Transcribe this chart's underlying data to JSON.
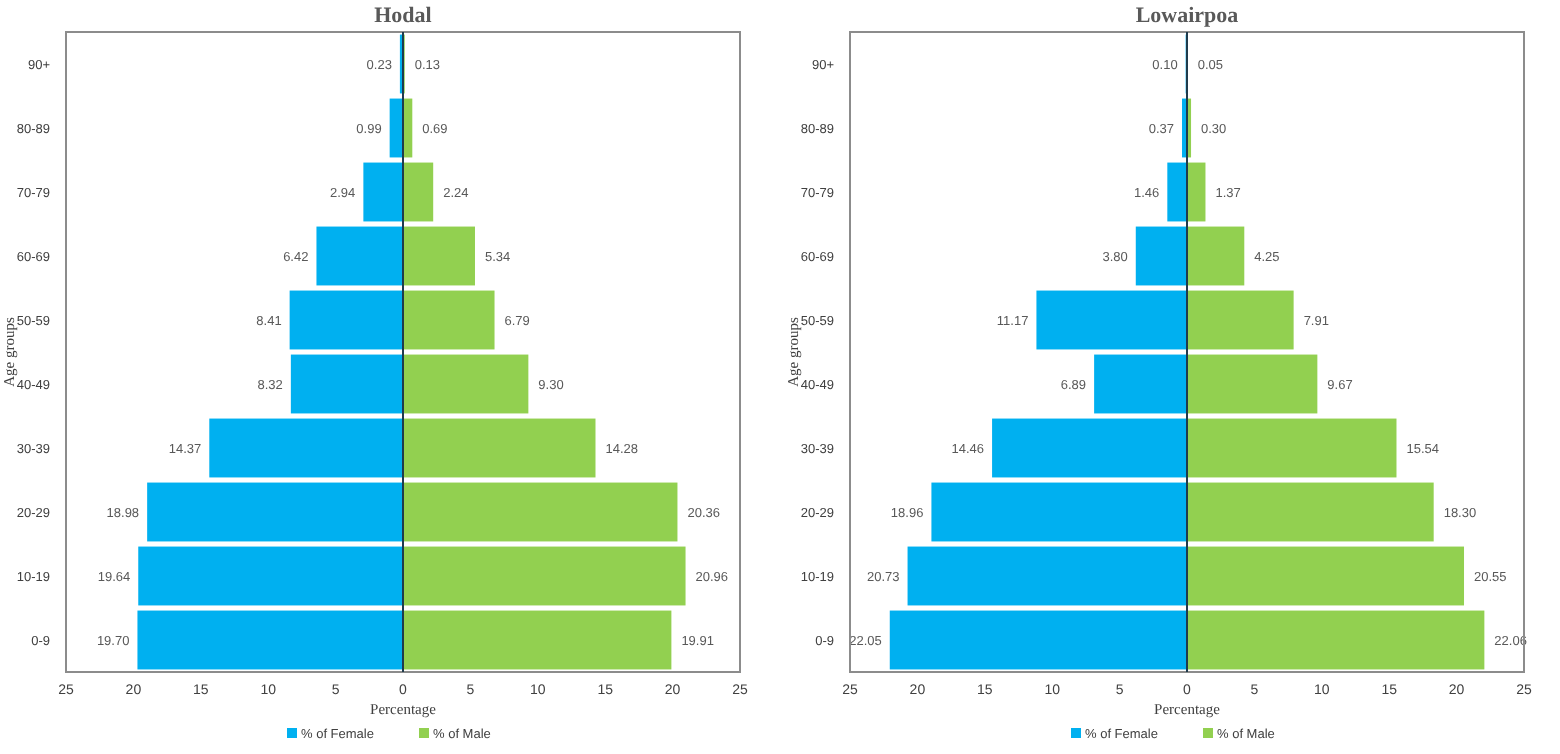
{
  "chart_data": [
    {
      "type": "bar",
      "orientation": "horizontal",
      "title": "Hodal",
      "xlabel": "Percentage",
      "ylabel": "Age groups",
      "categories": [
        "90+",
        "80-89",
        "70-79",
        "60-69",
        "50-59",
        "40-49",
        "30-39",
        "20-29",
        "10-19",
        "0-9"
      ],
      "series": [
        {
          "name": "% of Female",
          "color": "#00b0f0",
          "base": [
            -0.23,
            -0.99,
            -2.94,
            -6.42,
            -8.41,
            -8.32,
            -14.37,
            -18.98,
            -19.64,
            -19.7
          ],
          "values": [
            0.23,
            0.99,
            2.94,
            6.42,
            8.41,
            8.32,
            14.37,
            18.98,
            19.64,
            19.7
          ],
          "value_labels": [
            "0.23",
            "0.99",
            "2.94",
            "6.42",
            "8.41",
            "8.32",
            "14.37",
            "18.98",
            "19.64",
            "19.70"
          ]
        },
        {
          "name": "% of Male",
          "color": "#92d050",
          "values": [
            0.13,
            0.69,
            2.24,
            5.34,
            6.79,
            9.3,
            14.28,
            20.36,
            20.96,
            19.91
          ],
          "value_labels": [
            "0.13",
            "0.69",
            "2.24",
            "5.34",
            "6.79",
            "9.30",
            "14.28",
            "20.36",
            "20.96",
            "19.91"
          ]
        }
      ],
      "xlim": [
        -25,
        25
      ],
      "xticks": [
        {
          "value": -25,
          "label": "25"
        },
        {
          "value": -20,
          "label": "20"
        },
        {
          "value": -15,
          "label": "15"
        },
        {
          "value": -10,
          "label": "10"
        },
        {
          "value": -5,
          "label": "5"
        },
        0,
        5,
        10,
        15,
        20,
        25
      ],
      "legend": "bottom"
    },
    {
      "type": "bar",
      "orientation": "horizontal",
      "title": "Lowairpoa",
      "xlabel": "Percentage",
      "ylabel": "Age groups",
      "categories": [
        "90+",
        "80-89",
        "70-79",
        "60-69",
        "50-59",
        "40-49",
        "30-39",
        "20-29",
        "10-19",
        "0-9"
      ],
      "series": [
        {
          "name": "% of Female",
          "color": "#00b0f0",
          "base": [
            -0.1,
            -0.37,
            -1.46,
            -3.8,
            -11.17,
            -6.89,
            -14.46,
            -18.96,
            -20.73,
            -22.05
          ],
          "values": [
            0.1,
            0.37,
            1.46,
            3.8,
            11.17,
            6.89,
            14.46,
            18.96,
            20.73,
            22.05
          ],
          "value_labels": [
            "0.10",
            "0.37",
            "1.46",
            "3.80",
            "11.17",
            "6.89",
            "14.46",
            "18.96",
            "20.73",
            "22.05"
          ]
        },
        {
          "name": "% of Male",
          "color": "#92d050",
          "values": [
            0.05,
            0.3,
            1.37,
            4.25,
            7.91,
            9.67,
            15.54,
            18.3,
            20.55,
            22.06
          ],
          "value_labels": [
            "0.05",
            "0.30",
            "1.37",
            "4.25",
            "7.91",
            "9.67",
            "15.54",
            "18.30",
            "20.55",
            "22.06"
          ]
        }
      ],
      "xlim": [
        -25,
        25
      ],
      "xticks": [
        {
          "value": -25,
          "label": "25"
        },
        {
          "value": -20,
          "label": "20"
        },
        {
          "value": -15,
          "label": "15"
        },
        {
          "value": -10,
          "label": "10"
        },
        {
          "value": -5,
          "label": "5"
        },
        0,
        5,
        10,
        15,
        20,
        25
      ],
      "legend": "bottom"
    }
  ]
}
